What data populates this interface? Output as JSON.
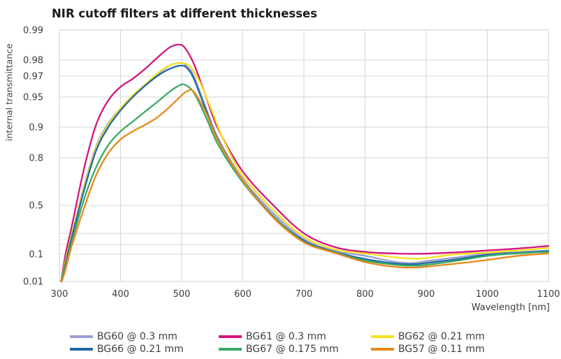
{
  "chart_data": {
    "type": "line",
    "title": "NIR cutoff filters at different thicknesses",
    "xlabel": "Wavelength  [nm]",
    "ylabel": "internal transmittance",
    "xlim": [
      300,
      1100
    ],
    "x_ticks": [
      "300",
      "400",
      "500",
      "600",
      "700",
      "800",
      "900",
      "1000",
      "1100"
    ],
    "y_ticks": [
      {
        "label": "0.99",
        "value": 0.99
      },
      {
        "label": "0.98",
        "value": 0.98
      },
      {
        "label": "0.97",
        "value": 0.97
      },
      {
        "label": "0.95",
        "value": 0.95
      },
      {
        "label": "0.9",
        "value": 0.9
      },
      {
        "label": "0.8",
        "value": 0.8
      },
      {
        "label": "0.5",
        "value": 0.5
      },
      {
        "label": "0.1",
        "value": 0.1
      },
      {
        "label": "0.01",
        "value": 0.01
      }
    ],
    "y_minor_grid": [
      0.3,
      0.2
    ],
    "grid": true,
    "legend_position": "bottom",
    "series": [
      {
        "name": "BG60 @ 0.3 mm",
        "color": "#9a9ed2",
        "x": [
          303,
          310,
          320,
          340,
          360,
          380,
          400,
          420,
          440,
          460,
          480,
          500,
          510,
          520,
          540,
          560,
          600,
          650,
          700,
          750,
          800,
          850,
          880,
          900,
          950,
          1000,
          1050,
          1100
        ],
        "y": [
          0.01,
          0.08,
          0.28,
          0.65,
          0.845,
          0.908,
          0.935,
          0.952,
          0.963,
          0.971,
          0.977,
          0.9785,
          0.976,
          0.97,
          0.935,
          0.87,
          0.7,
          0.45,
          0.25,
          0.135,
          0.095,
          0.075,
          0.072,
          0.078,
          0.09,
          0.105,
          0.122,
          0.14
        ]
      },
      {
        "name": "BG61 @ 0.3 mm",
        "color": "#d4157c",
        "x": [
          303,
          310,
          320,
          340,
          360,
          380,
          400,
          420,
          440,
          460,
          480,
          495,
          505,
          520,
          540,
          560,
          600,
          650,
          700,
          750,
          800,
          850,
          880,
          900,
          950,
          1000,
          1050,
          1100
        ],
        "y": [
          0.01,
          0.1,
          0.35,
          0.75,
          0.905,
          0.946,
          0.961,
          0.968,
          0.975,
          0.981,
          0.985,
          0.986,
          0.985,
          0.978,
          0.95,
          0.895,
          0.74,
          0.5,
          0.3,
          0.175,
          0.125,
          0.108,
          0.104,
          0.107,
          0.12,
          0.14,
          0.16,
          0.185
        ]
      },
      {
        "name": "BG62 @ 0.21 mm",
        "color": "#f5e21c",
        "x": [
          303,
          310,
          320,
          340,
          360,
          380,
          400,
          420,
          440,
          460,
          480,
          500,
          515,
          530,
          550,
          570,
          600,
          650,
          700,
          750,
          800,
          850,
          880,
          900,
          950,
          1000,
          1050,
          1100
        ],
        "y": [
          0.01,
          0.08,
          0.28,
          0.64,
          0.84,
          0.905,
          0.935,
          0.952,
          0.963,
          0.972,
          0.977,
          0.9785,
          0.976,
          0.965,
          0.93,
          0.86,
          0.72,
          0.47,
          0.27,
          0.15,
          0.108,
          0.09,
          0.086,
          0.088,
          0.1,
          0.118,
          0.14,
          0.165
        ]
      },
      {
        "name": "BG66 @ 0.21 mm",
        "color": "#1f6aa5",
        "x": [
          303,
          310,
          320,
          340,
          360,
          380,
          400,
          420,
          440,
          460,
          480,
          500,
          510,
          520,
          540,
          560,
          600,
          650,
          700,
          750,
          800,
          850,
          880,
          900,
          950,
          1000,
          1050,
          1100
        ],
        "y": [
          0.01,
          0.07,
          0.26,
          0.62,
          0.83,
          0.9,
          0.932,
          0.95,
          0.962,
          0.97,
          0.975,
          0.977,
          0.975,
          0.968,
          0.932,
          0.865,
          0.69,
          0.43,
          0.235,
          0.125,
          0.085,
          0.07,
          0.068,
          0.072,
          0.084,
          0.098,
          0.115,
          0.132
        ]
      },
      {
        "name": "BG67 @ 0.175 mm",
        "color": "#3aa966",
        "x": [
          303,
          310,
          320,
          340,
          360,
          380,
          400,
          420,
          440,
          460,
          480,
          495,
          505,
          520,
          540,
          560,
          600,
          650,
          700,
          750,
          800,
          850,
          880,
          900,
          950,
          1000,
          1050,
          1100
        ],
        "y": [
          0.01,
          0.06,
          0.22,
          0.55,
          0.76,
          0.85,
          0.89,
          0.912,
          0.93,
          0.944,
          0.956,
          0.962,
          0.963,
          0.955,
          0.92,
          0.85,
          0.68,
          0.425,
          0.225,
          0.12,
          0.08,
          0.066,
          0.063,
          0.066,
          0.079,
          0.095,
          0.11,
          0.125
        ]
      },
      {
        "name": "BG57 @ 0.11 mm",
        "color": "#e8891a",
        "x": [
          304,
          310,
          320,
          340,
          360,
          380,
          400,
          420,
          440,
          460,
          480,
          500,
          510,
          520,
          540,
          560,
          600,
          650,
          700,
          750,
          800,
          850,
          880,
          900,
          950,
          1000,
          1050,
          1100
        ],
        "y": [
          0.01,
          0.05,
          0.18,
          0.48,
          0.72,
          0.82,
          0.868,
          0.89,
          0.905,
          0.92,
          0.937,
          0.952,
          0.957,
          0.956,
          0.928,
          0.862,
          0.69,
          0.42,
          0.22,
          0.115,
          0.075,
          0.059,
          0.057,
          0.06,
          0.07,
          0.082,
          0.095,
          0.108
        ]
      }
    ]
  }
}
